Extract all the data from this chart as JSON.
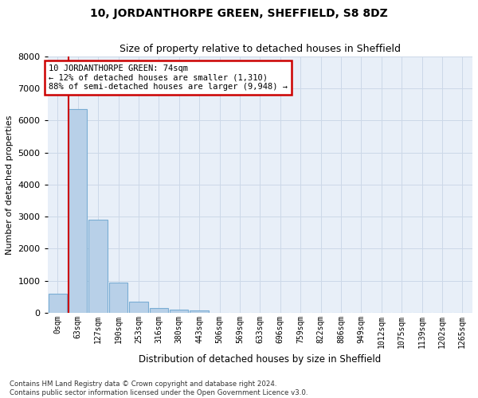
{
  "title1": "10, JORDANTHORPE GREEN, SHEFFIELD, S8 8DZ",
  "title2": "Size of property relative to detached houses in Sheffield",
  "xlabel": "Distribution of detached houses by size in Sheffield",
  "ylabel": "Number of detached properties",
  "bar_labels": [
    "0sqm",
    "63sqm",
    "127sqm",
    "190sqm",
    "253sqm",
    "316sqm",
    "380sqm",
    "443sqm",
    "506sqm",
    "569sqm",
    "633sqm",
    "696sqm",
    "759sqm",
    "822sqm",
    "886sqm",
    "949sqm",
    "1012sqm",
    "1075sqm",
    "1139sqm",
    "1202sqm",
    "1265sqm"
  ],
  "bar_values": [
    580,
    6350,
    2900,
    950,
    350,
    150,
    90,
    60,
    5,
    2,
    1,
    0,
    0,
    0,
    0,
    0,
    0,
    0,
    0,
    0,
    0
  ],
  "bar_color": "#b8d0e8",
  "bar_edge_color": "#7aadd4",
  "annotation_text": "10 JORDANTHORPE GREEN: 74sqm\n← 12% of detached houses are smaller (1,310)\n88% of semi-detached houses are larger (9,948) →",
  "annotation_box_color": "#ffffff",
  "annotation_box_edge": "#cc0000",
  "vline_color": "#cc0000",
  "grid_color": "#ccd8e8",
  "background_color": "#e8eff8",
  "ylim": [
    0,
    8000
  ],
  "footnote1": "Contains HM Land Registry data © Crown copyright and database right 2024.",
  "footnote2": "Contains public sector information licensed under the Open Government Licence v3.0."
}
